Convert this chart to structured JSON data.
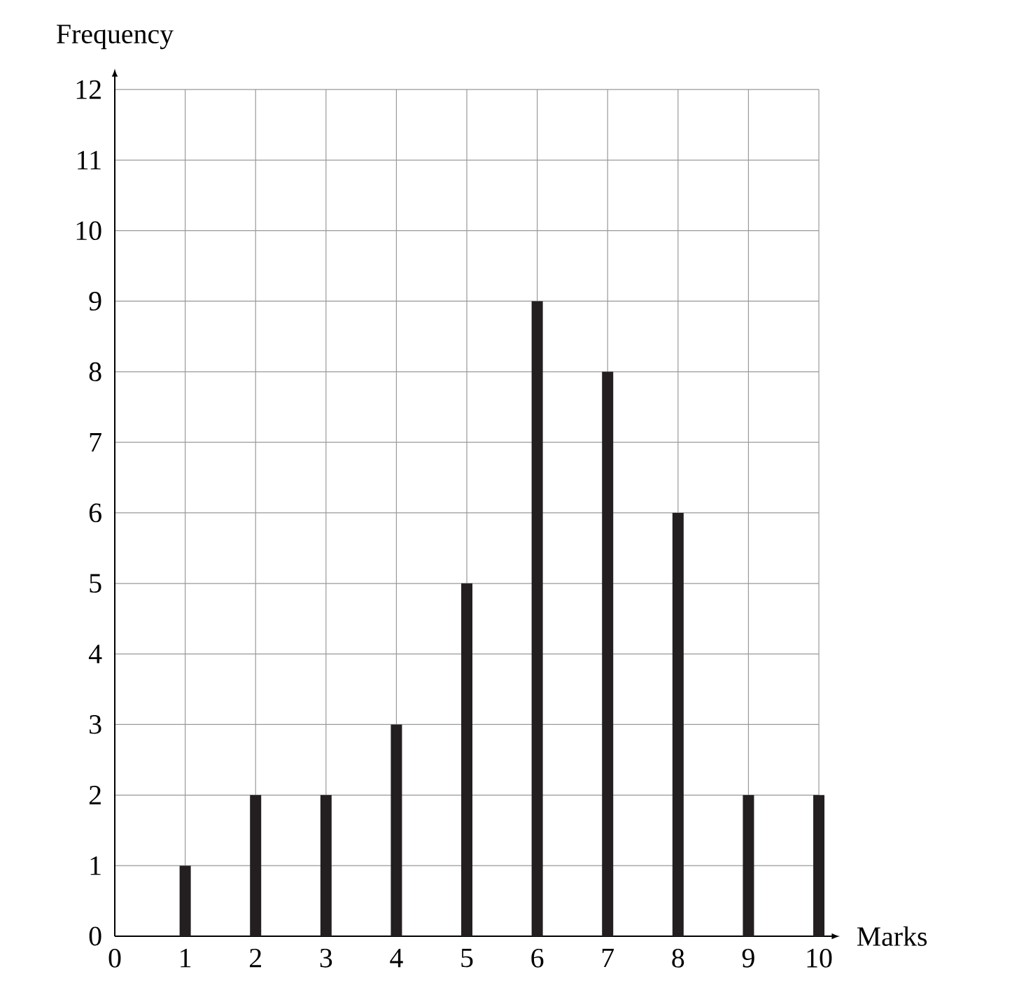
{
  "chart_data": {
    "type": "bar",
    "xlabel": "Marks",
    "ylabel": "Frequency",
    "x": [
      1,
      2,
      3,
      4,
      5,
      6,
      7,
      8,
      9,
      10
    ],
    "values": [
      1,
      2,
      2,
      3,
      5,
      9,
      8,
      6,
      2,
      2
    ],
    "color": "#231f20",
    "xlim": [
      0,
      10
    ],
    "ylim": [
      0,
      12
    ],
    "xticks": [
      0,
      1,
      2,
      3,
      4,
      5,
      6,
      7,
      8,
      9,
      10
    ],
    "yticks": [
      0,
      1,
      2,
      3,
      4,
      5,
      6,
      7,
      8,
      9,
      10,
      11,
      12
    ],
    "grid": true
  }
}
